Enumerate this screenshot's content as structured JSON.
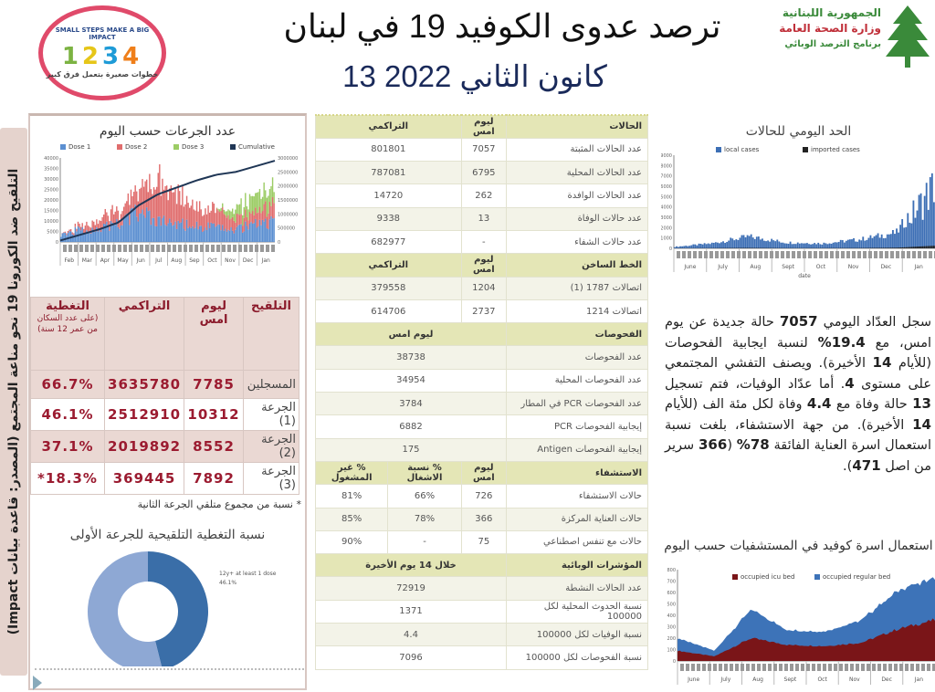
{
  "header": {
    "title": "ترصد عدوى الكوفيد 19 في لبنان",
    "date": "13 كانون الثاني 2022",
    "ministry_lines": [
      "الجمهورية اللبنانية",
      "وزارة الصحة العامة",
      "برنامج الترصد الوبائي"
    ],
    "campaign_logo": {
      "slogan_en": "SMALL STEPS MAKE A BIG IMPACT",
      "numbers": [
        "1",
        "2",
        "3",
        "4"
      ],
      "slogan_ar": "خطوات صغيرة بتعمل فرق كبير"
    }
  },
  "sidebar_label": "التلقيح ضد الكورونا 19 نحو مناعة المجتمع (المصدر: قاعدة بيانات Impact)",
  "vaccination": {
    "chart_title": "عدد الجرعات حسب اليوم",
    "table": {
      "headers": [
        "التلقيح",
        "ليوم امس",
        "التراكمي",
        "التغطية"
      ],
      "coverage_note": "(على عدد السكان من عمر 12 سنة)",
      "rows": [
        {
          "label": "المسجلين",
          "yesterday": "7785",
          "cumulative": "3635780",
          "coverage": "66.7%"
        },
        {
          "label": "الجرعة (1)",
          "yesterday": "10312",
          "cumulative": "2512910",
          "coverage": "46.1%"
        },
        {
          "label": "الجرعة (2)",
          "yesterday": "8552",
          "cumulative": "2019892",
          "coverage": "37.1%"
        },
        {
          "label": "الجرعة (3)",
          "yesterday": "7892",
          "cumulative": "369445",
          "coverage": "18.3%*"
        }
      ]
    },
    "footnote": "* نسبة من مجموع متلقي الجرعة الثانية",
    "donut_title": "نسبة التغطية التلقيحية للجرعة الأولى",
    "donut": {
      "label": "12y+ at least 1 dose",
      "value_label": "46.1%",
      "value": 46.1,
      "colors": [
        "#3a6ea8",
        "#8ea8d4"
      ]
    }
  },
  "center_table": [
    {
      "header": [
        "الحالات",
        "ليوم امس",
        "التراكمي"
      ],
      "rows": [
        [
          "عدد الحالات المثبتة",
          "7057",
          "801801"
        ],
        [
          "عدد الحالات المحلية",
          "6795",
          "787081"
        ],
        [
          "عدد الحالات الوافدة",
          "262",
          "14720"
        ],
        [
          "عدد حالات الوفاة",
          "13",
          "9338"
        ],
        [
          "عدد حالات الشفاء",
          "-",
          "682977"
        ]
      ]
    },
    {
      "header": [
        "الخط الساخن",
        "ليوم امس",
        "التراكمي"
      ],
      "rows": [
        [
          "اتصالات 1787 (1)",
          "1204",
          "379558"
        ],
        [
          "اتصالات 1214",
          "2737",
          "614706"
        ]
      ]
    },
    {
      "header": [
        "الفحوصات",
        "ليوم امس"
      ],
      "rows": [
        [
          "عدد الفحوصات",
          "38738"
        ],
        [
          "عدد الفحوصات المحلية",
          "34954"
        ],
        [
          "عدد الفحوصات PCR في المطار",
          "3784"
        ],
        [
          "إيجابية الفحوصات PCR",
          "6882"
        ],
        [
          "إيجابية الفحوصات Antigen",
          "175"
        ]
      ]
    },
    {
      "header": [
        "الاستشفاء",
        "ليوم امس",
        "% نسبة الاشغال",
        "% غير المشغول"
      ],
      "rows": [
        [
          "حالات الاستشفاء",
          "726",
          "66%",
          "81%"
        ],
        [
          "حالات العناية المركزة",
          "366",
          "78%",
          "85%"
        ],
        [
          "حالات مع تنفس اصطناعي",
          "75",
          "-",
          "90%"
        ]
      ]
    },
    {
      "header": [
        "المؤشرات الوبائية",
        "خلال 14 يوم الأخيرة"
      ],
      "rows": [
        [
          "عدد الحالات النشطة",
          "72919"
        ],
        [
          "نسبة الحدوث المحلية لكل 100000",
          "1371"
        ],
        [
          "نسبة الوفيات لكل 100000",
          "4.4"
        ],
        [
          "نسبة الفحوصات لكل 100000",
          "7096"
        ]
      ]
    }
  ],
  "summary_paragraph": [
    {
      "t": "سجل العدّاد اليومي ",
      "b": false
    },
    {
      "t": "7057",
      "b": true
    },
    {
      "t": " حالة جديدة عن يوم امس، مع ",
      "b": false
    },
    {
      "t": "19.4%",
      "b": true
    },
    {
      "t": " لنسبة ايجابية الفحوصات (للأيام ",
      "b": false
    },
    {
      "t": "14",
      "b": true
    },
    {
      "t": " الأخيرة). ويصنف التفشي المجتمعي على مستوى ",
      "b": false
    },
    {
      "t": "4",
      "b": true
    },
    {
      "t": ". أما عدّاد الوفيات، فتم تسجيل ",
      "b": false
    },
    {
      "t": "13",
      "b": true
    },
    {
      "t": " حالة وفاة مع ",
      "b": false
    },
    {
      "t": "4.4",
      "b": true
    },
    {
      "t": " وفاة لكل مئة الف (للأيام ",
      "b": false
    },
    {
      "t": "14",
      "b": true
    },
    {
      "t": " الأخيرة). من جهة الاستشفاء، بلغت نسبة استعمال اسرة العناية الفائقة ",
      "b": false
    },
    {
      "t": "78%",
      "b": true
    },
    {
      "t": " (",
      "b": false
    },
    {
      "t": "366",
      "b": true
    },
    {
      "t": " سرير من اصل ",
      "b": false
    },
    {
      "t": "471",
      "b": true
    },
    {
      "t": ").",
      "b": false
    }
  ],
  "chart_data": [
    {
      "type": "bar",
      "title": "الحد اليومي للحالات",
      "xlabel": "date",
      "legend": [
        "imported cases",
        "local cases"
      ],
      "categories": [
        "June",
        "July",
        "Aug",
        "Sept",
        "Oct",
        "Nov",
        "Dec",
        "Jan"
      ],
      "ylim": [
        0,
        9000
      ],
      "series": [
        {
          "name": "local cases",
          "values": [
            150,
            500,
            1200,
            600,
            500,
            900,
            1600,
            7000
          ],
          "color": "#3d6fb5"
        },
        {
          "name": "imported cases",
          "values": [
            10,
            20,
            40,
            20,
            20,
            30,
            60,
            250
          ],
          "color": "#222222"
        }
      ]
    },
    {
      "type": "bar",
      "title": "عدد الجرعات حسب اليوم",
      "legend": [
        "Dose 1",
        "Dose 2",
        "Dose 3",
        "Cumulative"
      ],
      "categories": [
        "Feb",
        "Mar",
        "Apr",
        "May",
        "Jun",
        "Jul",
        "Aug",
        "Sep",
        "Oct",
        "Nov",
        "Dec",
        "Jan"
      ],
      "ylim": [
        0,
        40000
      ],
      "y2lim": [
        0,
        3000000
      ],
      "series": [
        {
          "name": "Dose 1",
          "values": [
            4000,
            6000,
            7000,
            9000,
            15000,
            10000,
            9000,
            8000,
            7000,
            6000,
            9000,
            10000
          ],
          "color": "#5b8fd1"
        },
        {
          "name": "Dose 2",
          "values": [
            0,
            2000,
            6000,
            7000,
            10000,
            20000,
            14000,
            10000,
            8000,
            5000,
            6000,
            8000
          ],
          "color": "#e06d6d"
        },
        {
          "name": "Dose 3",
          "values": [
            0,
            0,
            0,
            0,
            0,
            0,
            0,
            0,
            0,
            5000,
            8000,
            8000
          ],
          "color": "#9ccc65"
        },
        {
          "name": "Cumulative",
          "values": [
            50000,
            250000,
            450000,
            700000,
            1300000,
            1700000,
            1950000,
            2200000,
            2400000,
            2500000,
            2700000,
            2900000
          ],
          "color": "#1f3655"
        }
      ]
    },
    {
      "type": "area",
      "title": "استعمال اسرة كوفيد في المستشفيات حسب اليوم",
      "legend": [
        "occupied icu bed",
        "occupied regular bed"
      ],
      "categories": [
        "June",
        "July",
        "Aug",
        "Sept",
        "Oct",
        "Nov",
        "Dec",
        "Jan"
      ],
      "ylim": [
        0,
        800
      ],
      "series": [
        {
          "name": "occupied icu bed",
          "values": [
            90,
            40,
            200,
            140,
            130,
            160,
            280,
            360
          ],
          "color": "#7a1518"
        },
        {
          "name": "occupied regular bed",
          "values": [
            110,
            50,
            250,
            130,
            130,
            200,
            340,
            370
          ],
          "color": "#3d73b8"
        }
      ]
    }
  ]
}
